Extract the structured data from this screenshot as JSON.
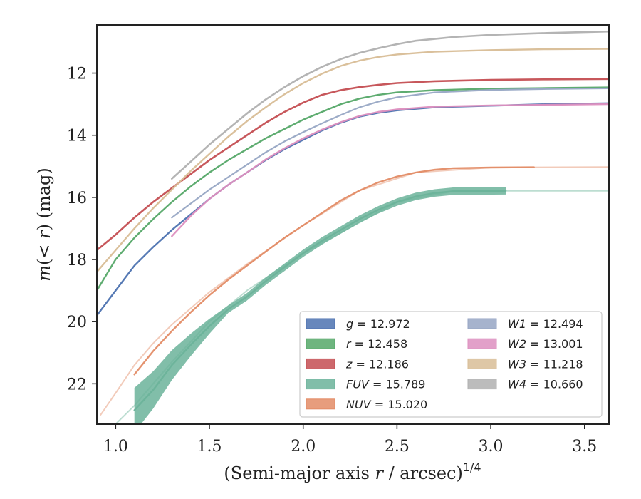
{
  "chart_data": {
    "type": "line",
    "xlabel": "(Semi-major axis r / arcsec)^{1/4}",
    "ylabel": "m(< r) (mag)",
    "xlim": [
      0.9,
      3.63
    ],
    "ylim": [
      23.3,
      10.45
    ],
    "y_inverted": true,
    "x_ticks": [
      1.0,
      1.5,
      2.0,
      2.5,
      3.0,
      3.5
    ],
    "x_tick_labels": [
      "1.0",
      "1.5",
      "2.0",
      "2.5",
      "3.0",
      "3.5"
    ],
    "y_ticks": [
      12,
      14,
      16,
      18,
      20,
      22
    ],
    "y_tick_labels": [
      "12",
      "14",
      "16",
      "18",
      "20",
      "22"
    ],
    "grid": false,
    "legend_position": "lower-right",
    "series": [
      {
        "name": "g",
        "label_value": "12.972",
        "color": "#4c72b0",
        "width": 2.4,
        "points": [
          [
            0.9,
            19.8
          ],
          [
            1.0,
            19.0
          ],
          [
            1.1,
            18.2
          ],
          [
            1.2,
            17.6
          ],
          [
            1.3,
            17.05
          ],
          [
            1.4,
            16.55
          ],
          [
            1.5,
            16.05
          ],
          [
            1.6,
            15.6
          ],
          [
            1.7,
            15.2
          ],
          [
            1.8,
            14.8
          ],
          [
            1.9,
            14.45
          ],
          [
            2.0,
            14.15
          ],
          [
            2.1,
            13.85
          ],
          [
            2.2,
            13.6
          ],
          [
            2.3,
            13.4
          ],
          [
            2.4,
            13.28
          ],
          [
            2.5,
            13.2
          ],
          [
            2.7,
            13.1
          ],
          [
            3.0,
            13.05
          ],
          [
            3.3,
            13.0
          ],
          [
            3.63,
            12.97
          ]
        ]
      },
      {
        "name": "r",
        "label_value": "12.458",
        "color": "#55a868",
        "width": 2.4,
        "points": [
          [
            0.9,
            19.0
          ],
          [
            1.0,
            18.0
          ],
          [
            1.1,
            17.3
          ],
          [
            1.2,
            16.7
          ],
          [
            1.3,
            16.15
          ],
          [
            1.4,
            15.65
          ],
          [
            1.5,
            15.2
          ],
          [
            1.6,
            14.8
          ],
          [
            1.7,
            14.45
          ],
          [
            1.8,
            14.1
          ],
          [
            1.9,
            13.8
          ],
          [
            2.0,
            13.5
          ],
          [
            2.1,
            13.25
          ],
          [
            2.2,
            13.0
          ],
          [
            2.3,
            12.82
          ],
          [
            2.4,
            12.7
          ],
          [
            2.5,
            12.62
          ],
          [
            2.7,
            12.55
          ],
          [
            3.0,
            12.5
          ],
          [
            3.3,
            12.48
          ],
          [
            3.63,
            12.46
          ]
        ]
      },
      {
        "name": "z",
        "label_value": "12.186",
        "color": "#c44e52",
        "width": 2.6,
        "points": [
          [
            0.9,
            17.7
          ],
          [
            1.0,
            17.2
          ],
          [
            1.1,
            16.65
          ],
          [
            1.2,
            16.15
          ],
          [
            1.3,
            15.7
          ],
          [
            1.4,
            15.25
          ],
          [
            1.5,
            14.8
          ],
          [
            1.6,
            14.4
          ],
          [
            1.7,
            14.0
          ],
          [
            1.8,
            13.6
          ],
          [
            1.9,
            13.25
          ],
          [
            2.0,
            12.95
          ],
          [
            2.1,
            12.7
          ],
          [
            2.2,
            12.55
          ],
          [
            2.3,
            12.45
          ],
          [
            2.4,
            12.38
          ],
          [
            2.5,
            12.32
          ],
          [
            2.7,
            12.26
          ],
          [
            3.0,
            12.22
          ],
          [
            3.3,
            12.2
          ],
          [
            3.63,
            12.19
          ]
        ]
      },
      {
        "name": "FUV",
        "label_value": "15.789",
        "color": "#6bb39a",
        "width": 2.4,
        "points": [
          [
            1.1,
            22.85
          ],
          [
            1.2,
            22.2
          ],
          [
            1.3,
            21.4
          ],
          [
            1.4,
            20.75
          ],
          [
            1.5,
            20.15
          ],
          [
            1.6,
            19.6
          ],
          [
            1.7,
            19.2
          ],
          [
            1.8,
            18.7
          ],
          [
            1.9,
            18.25
          ],
          [
            2.0,
            17.8
          ],
          [
            2.1,
            17.4
          ],
          [
            2.2,
            17.05
          ],
          [
            2.3,
            16.7
          ],
          [
            2.4,
            16.4
          ],
          [
            2.5,
            16.15
          ],
          [
            2.6,
            15.97
          ],
          [
            2.7,
            15.86
          ],
          [
            2.8,
            15.8
          ],
          [
            3.08,
            15.79
          ]
        ]
      },
      {
        "name": "FUV-faint",
        "color": "#6bb39a",
        "width": 2.0,
        "opacity": 0.45,
        "points": [
          [
            1.0,
            23.3
          ],
          [
            1.05,
            23.0
          ],
          [
            1.1,
            22.7
          ],
          [
            1.2,
            22.0
          ],
          [
            1.3,
            21.3
          ],
          [
            1.5,
            20.0
          ],
          [
            1.7,
            19.0
          ],
          [
            2.0,
            17.8
          ],
          [
            2.5,
            16.15
          ],
          [
            2.8,
            15.8
          ],
          [
            3.08,
            15.79
          ],
          [
            3.63,
            15.79
          ]
        ]
      },
      {
        "name": "NUV",
        "label_value": "15.020",
        "color": "#e38c66",
        "width": 2.4,
        "points": [
          [
            1.1,
            21.7
          ],
          [
            1.2,
            20.95
          ],
          [
            1.3,
            20.3
          ],
          [
            1.4,
            19.7
          ],
          [
            1.5,
            19.15
          ],
          [
            1.6,
            18.65
          ],
          [
            1.7,
            18.2
          ],
          [
            1.8,
            17.75
          ],
          [
            1.9,
            17.3
          ],
          [
            2.0,
            16.9
          ],
          [
            2.1,
            16.5
          ],
          [
            2.2,
            16.1
          ],
          [
            2.3,
            15.78
          ],
          [
            2.4,
            15.52
          ],
          [
            2.5,
            15.33
          ],
          [
            2.6,
            15.2
          ],
          [
            2.7,
            15.11
          ],
          [
            2.8,
            15.06
          ],
          [
            3.0,
            15.04
          ],
          [
            3.23,
            15.03
          ]
        ]
      },
      {
        "name": "NUV-faint",
        "color": "#e38c66",
        "width": 2.0,
        "opacity": 0.45,
        "points": [
          [
            0.92,
            23.0
          ],
          [
            1.0,
            22.3
          ],
          [
            1.1,
            21.4
          ],
          [
            1.2,
            20.7
          ],
          [
            1.3,
            20.1
          ],
          [
            1.5,
            19.05
          ],
          [
            1.7,
            18.15
          ],
          [
            2.0,
            16.9
          ],
          [
            2.3,
            15.78
          ],
          [
            2.6,
            15.2
          ],
          [
            3.0,
            15.04
          ],
          [
            3.63,
            15.02
          ]
        ]
      },
      {
        "name": "W1",
        "label_value": "12.494",
        "color": "#97a6c4",
        "width": 2.2,
        "points": [
          [
            1.3,
            16.65
          ],
          [
            1.4,
            16.2
          ],
          [
            1.5,
            15.75
          ],
          [
            1.6,
            15.35
          ],
          [
            1.7,
            14.95
          ],
          [
            1.8,
            14.55
          ],
          [
            1.9,
            14.2
          ],
          [
            2.0,
            13.9
          ],
          [
            2.1,
            13.62
          ],
          [
            2.2,
            13.35
          ],
          [
            2.3,
            13.1
          ],
          [
            2.4,
            12.92
          ],
          [
            2.5,
            12.78
          ],
          [
            2.7,
            12.62
          ],
          [
            3.0,
            12.54
          ],
          [
            3.3,
            12.51
          ],
          [
            3.63,
            12.49
          ]
        ]
      },
      {
        "name": "W2",
        "label_value": "13.001",
        "color": "#dd8fbf",
        "width": 2.4,
        "points": [
          [
            1.3,
            17.25
          ],
          [
            1.4,
            16.6
          ],
          [
            1.5,
            16.05
          ],
          [
            1.6,
            15.6
          ],
          [
            1.7,
            15.2
          ],
          [
            1.8,
            14.78
          ],
          [
            1.9,
            14.42
          ],
          [
            2.0,
            14.1
          ],
          [
            2.1,
            13.82
          ],
          [
            2.2,
            13.58
          ],
          [
            2.3,
            13.38
          ],
          [
            2.4,
            13.25
          ],
          [
            2.5,
            13.17
          ],
          [
            2.7,
            13.08
          ],
          [
            3.0,
            13.04
          ],
          [
            3.3,
            13.02
          ],
          [
            3.63,
            13.0
          ]
        ]
      },
      {
        "name": "W3",
        "label_value": "11.218",
        "color": "#d8bd96",
        "width": 2.4,
        "points": [
          [
            0.9,
            18.4
          ],
          [
            1.0,
            17.7
          ],
          [
            1.1,
            17.0
          ],
          [
            1.2,
            16.35
          ],
          [
            1.3,
            15.75
          ],
          [
            1.4,
            15.15
          ],
          [
            1.5,
            14.6
          ],
          [
            1.6,
            14.05
          ],
          [
            1.7,
            13.55
          ],
          [
            1.8,
            13.1
          ],
          [
            1.9,
            12.68
          ],
          [
            2.0,
            12.32
          ],
          [
            2.1,
            12.02
          ],
          [
            2.2,
            11.77
          ],
          [
            2.3,
            11.6
          ],
          [
            2.4,
            11.48
          ],
          [
            2.5,
            11.4
          ],
          [
            2.7,
            11.31
          ],
          [
            3.0,
            11.26
          ],
          [
            3.3,
            11.23
          ],
          [
            3.63,
            11.22
          ]
        ]
      },
      {
        "name": "W4",
        "label_value": "10.660",
        "color": "#b0b0b0",
        "width": 2.6,
        "points": [
          [
            1.3,
            15.4
          ],
          [
            1.4,
            14.85
          ],
          [
            1.5,
            14.3
          ],
          [
            1.6,
            13.8
          ],
          [
            1.7,
            13.3
          ],
          [
            1.8,
            12.85
          ],
          [
            1.9,
            12.45
          ],
          [
            2.0,
            12.1
          ],
          [
            2.1,
            11.8
          ],
          [
            2.2,
            11.55
          ],
          [
            2.3,
            11.35
          ],
          [
            2.4,
            11.2
          ],
          [
            2.5,
            11.07
          ],
          [
            2.6,
            10.96
          ],
          [
            2.8,
            10.84
          ],
          [
            3.0,
            10.77
          ],
          [
            3.3,
            10.71
          ],
          [
            3.63,
            10.66
          ]
        ]
      }
    ],
    "legend": {
      "left_column": [
        {
          "var": "g",
          "value": "12.972",
          "color": "#4c72b0"
        },
        {
          "var": "r",
          "value": "12.458",
          "color": "#55a868"
        },
        {
          "var": "z",
          "value": "12.186",
          "color": "#c44e52"
        },
        {
          "var": "FUV",
          "value": "15.789",
          "color": "#6bb39a"
        },
        {
          "var": "NUV",
          "value": "15.020",
          "color": "#e38c66"
        }
      ],
      "right_column": [
        {
          "var": "W1",
          "value": "12.494",
          "color": "#97a6c4"
        },
        {
          "var": "W2",
          "value": "13.001",
          "color": "#dd8fbf"
        },
        {
          "var": "W3",
          "value": "11.218",
          "color": "#d8bd96"
        },
        {
          "var": "W4",
          "value": "10.660",
          "color": "#b0b0b0"
        }
      ]
    }
  }
}
